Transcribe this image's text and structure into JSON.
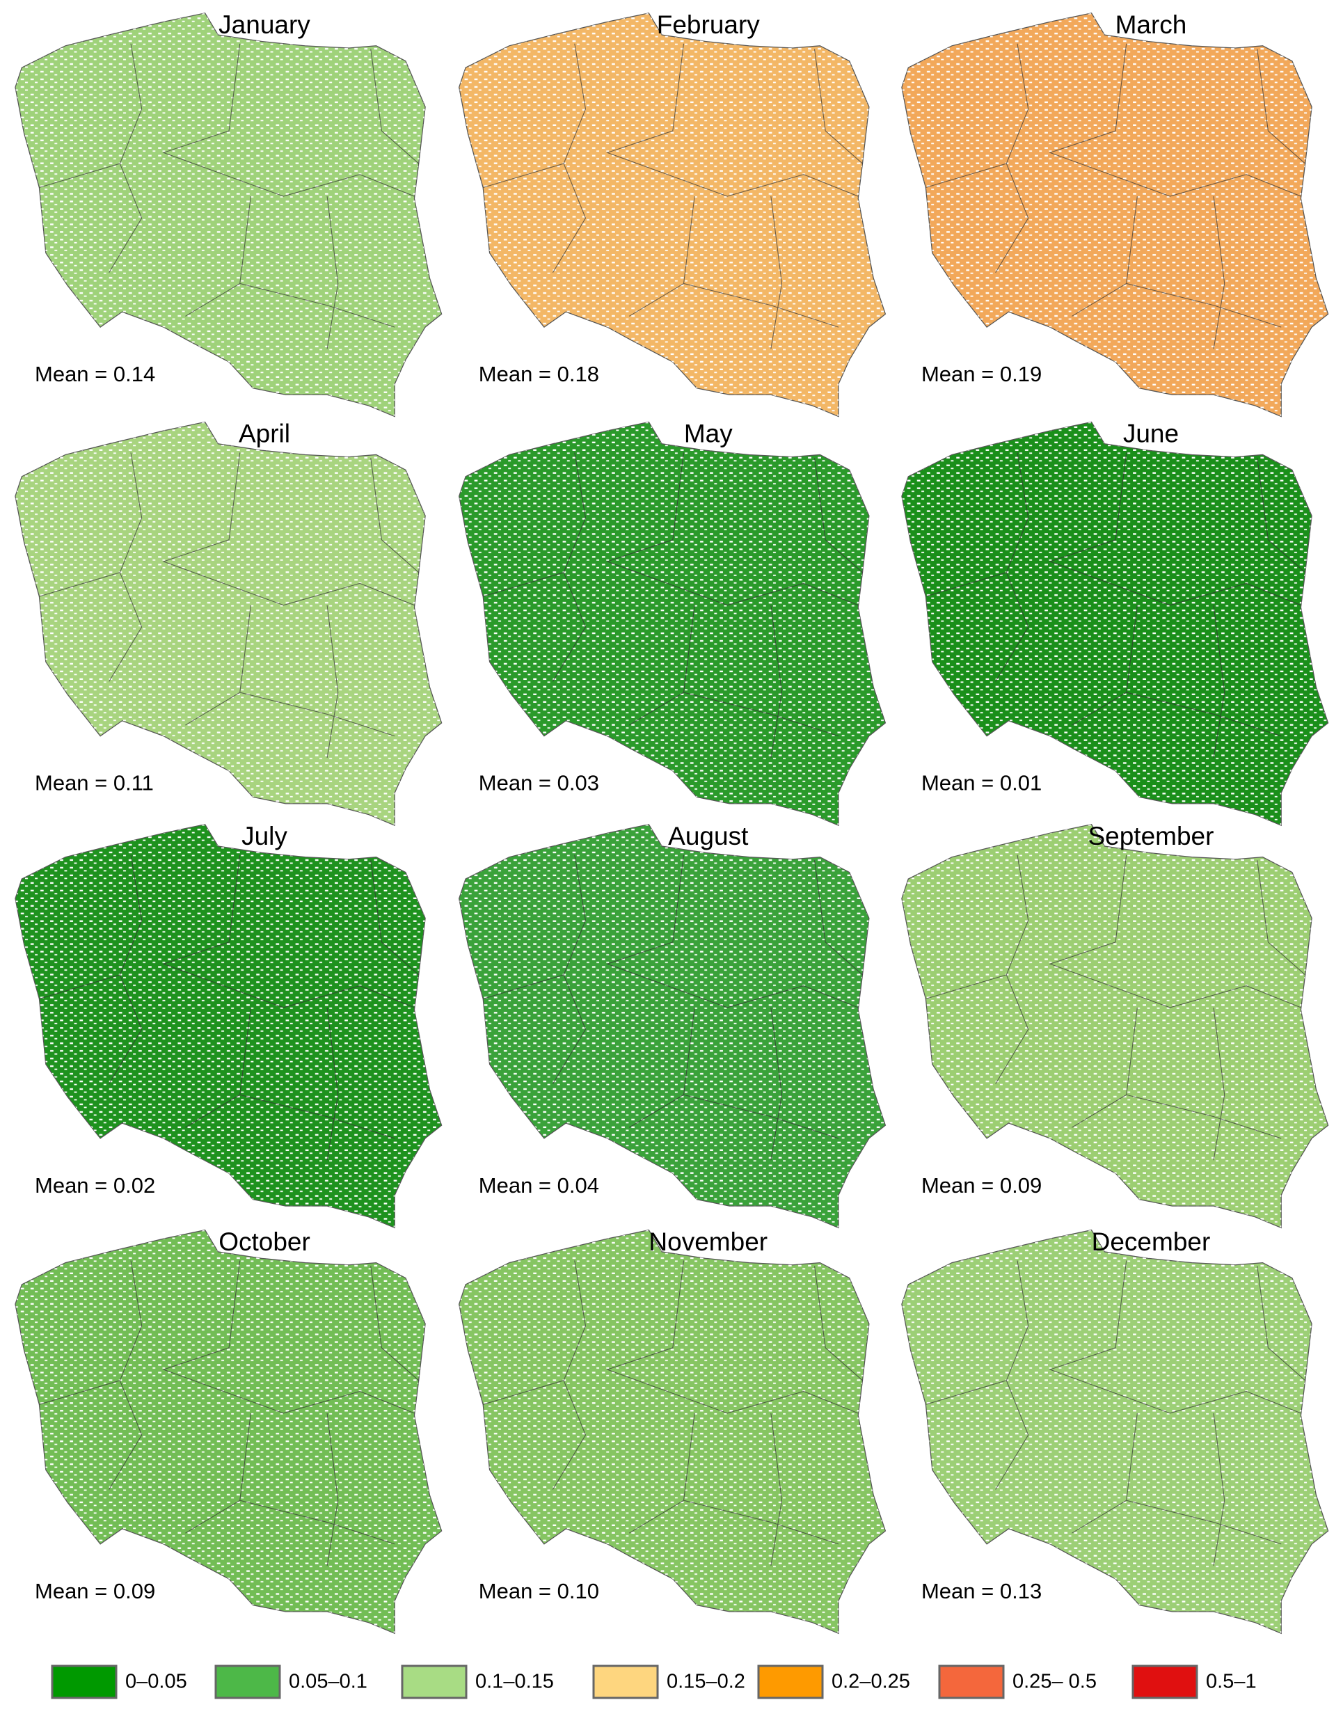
{
  "maps": [
    {
      "title": "January",
      "mean": "Mean = 0.14",
      "color": "#9fd27a"
    },
    {
      "title": "February",
      "mean": "Mean = 0.18",
      "color": "#f3b766"
    },
    {
      "title": "March",
      "mean": "Mean = 0.19",
      "color": "#f2a85a"
    },
    {
      "title": "April",
      "mean": "Mean = 0.11",
      "color": "#a8d47f"
    },
    {
      "title": "May",
      "mean": "Mean = 0.03",
      "color": "#2a9a2a"
    },
    {
      "title": "June",
      "mean": "Mean = 0.01",
      "color": "#1a8f1a"
    },
    {
      "title": "July",
      "mean": "Mean = 0.02",
      "color": "#1e921e"
    },
    {
      "title": "August",
      "mean": "Mean = 0.04",
      "color": "#3aa23a"
    },
    {
      "title": "September",
      "mean": "Mean = 0.09",
      "color": "#9cce72"
    },
    {
      "title": "October",
      "mean": "Mean = 0.09",
      "color": "#72bd55"
    },
    {
      "title": "November",
      "mean": "Mean = 0.10",
      "color": "#86c562"
    },
    {
      "title": "December",
      "mean": "Mean = 0.13",
      "color": "#9ccf76"
    }
  ],
  "legend": [
    {
      "label": "0–0.05",
      "color": "#009900"
    },
    {
      "label": "0.05–0.1",
      "color": "#4db848"
    },
    {
      "label": "0.1–0.15",
      "color": "#a8dc84"
    },
    {
      "label": "0.15–0.2",
      "color": "#fed67f"
    },
    {
      "label": "0.2–0.25",
      "color": "#fe9a00"
    },
    {
      "label": "0.25– 0.5",
      "color": "#f4673c"
    },
    {
      "label": "0.5–1",
      "color": "#e01010"
    }
  ]
}
